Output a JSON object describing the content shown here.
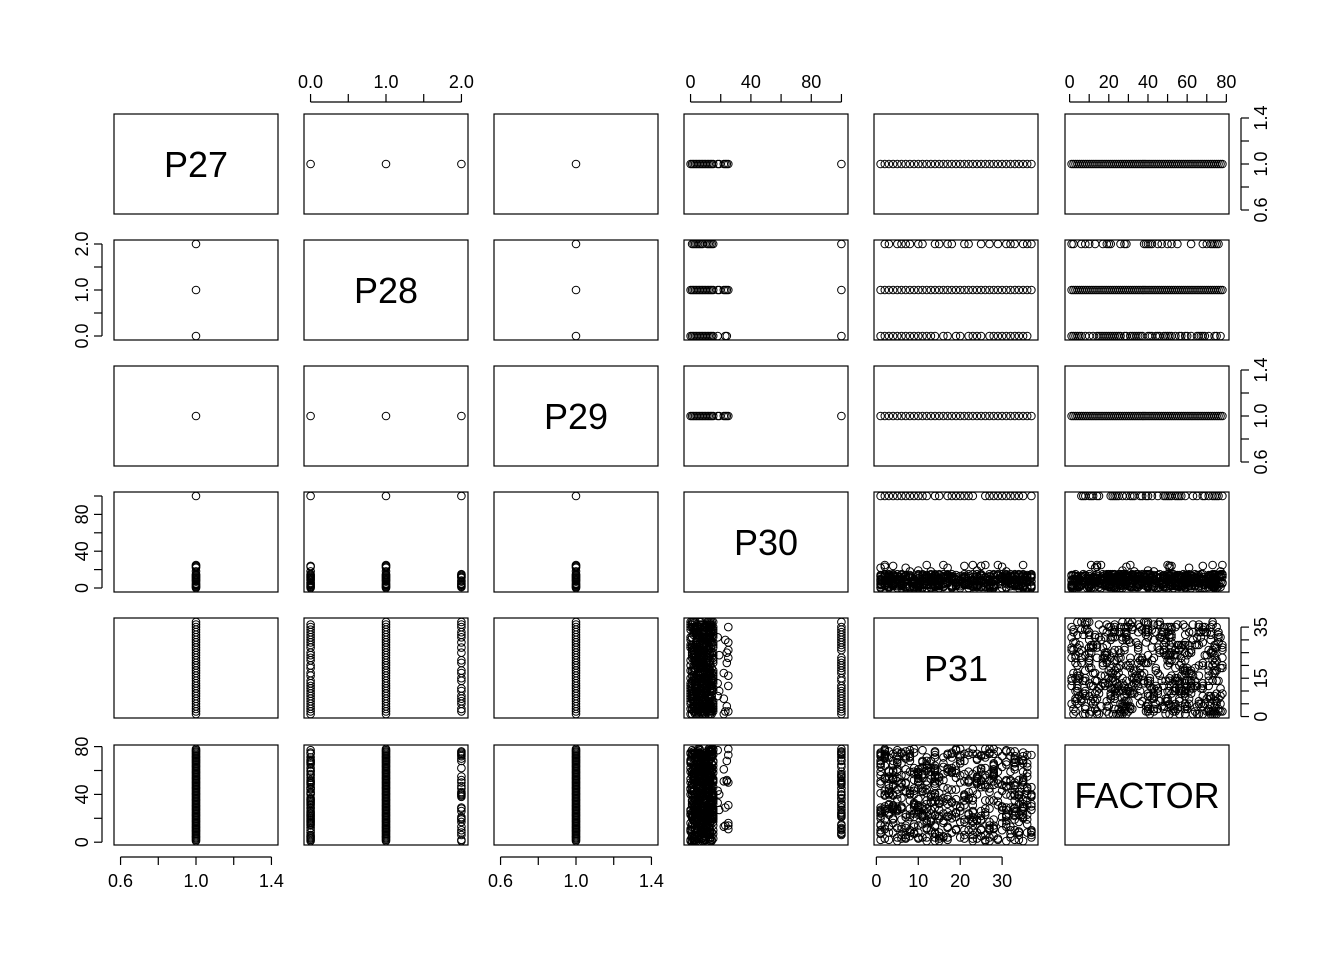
{
  "chart_data": {
    "type": "scatter",
    "variables": [
      "P27",
      "P28",
      "P29",
      "P30",
      "P31",
      "FACTOR"
    ],
    "axes": {
      "P27": {
        "range": [
          0.6,
          1.4
        ],
        "ticks": [
          0.6,
          0.8,
          1.0,
          1.2,
          1.4
        ],
        "labels": [
          "0.6",
          "",
          "1.0",
          "",
          "1.4"
        ]
      },
      "P28": {
        "range": [
          0,
          2
        ],
        "ticks": [
          0,
          0.5,
          1,
          1.5,
          2
        ],
        "labels": [
          "0.0",
          "",
          "1.0",
          "",
          "2.0"
        ]
      },
      "P29": {
        "range": [
          0.6,
          1.4
        ],
        "ticks": [
          0.6,
          0.8,
          1.0,
          1.2,
          1.4
        ],
        "labels": [
          "0.6",
          "",
          "1.0",
          "",
          "1.4"
        ]
      },
      "P30": {
        "range": [
          0,
          100
        ],
        "ticks": [
          0,
          20,
          40,
          60,
          80,
          100
        ],
        "labels": [
          "0",
          "",
          "40",
          "",
          "80",
          ""
        ]
      },
      "P31": {
        "range": [
          1,
          37
        ],
        "ticks": [
          0,
          5,
          10,
          15,
          20,
          25,
          30,
          35
        ],
        "labels": [
          "0",
          "",
          "",
          "15",
          "",
          "",
          "",
          "35"
        ],
        "ticks_alt": [
          0,
          10,
          20,
          30
        ],
        "labels_alt": [
          "0",
          "10",
          "20",
          "30"
        ]
      },
      "FACTOR": {
        "range": [
          1,
          78
        ],
        "ticks": [
          0,
          10,
          20,
          30,
          40,
          50,
          60,
          70,
          80
        ],
        "labels": [
          "0",
          "",
          "20",
          "",
          "40",
          "",
          "60",
          "",
          "80"
        ],
        "ticks_alt": [
          0,
          20,
          40,
          60,
          80
        ],
        "labels_alt": [
          "0",
          "",
          "40",
          "",
          "80"
        ]
      }
    },
    "observations_summary": {
      "P27": [
        1
      ],
      "P28": [
        0,
        1,
        2
      ],
      "P29": [
        1
      ],
      "P30": "mostly 1-25 with a cluster at 100",
      "P31": "1-37",
      "FACTOR": "1-78"
    },
    "grid": false,
    "legend": "none"
  }
}
